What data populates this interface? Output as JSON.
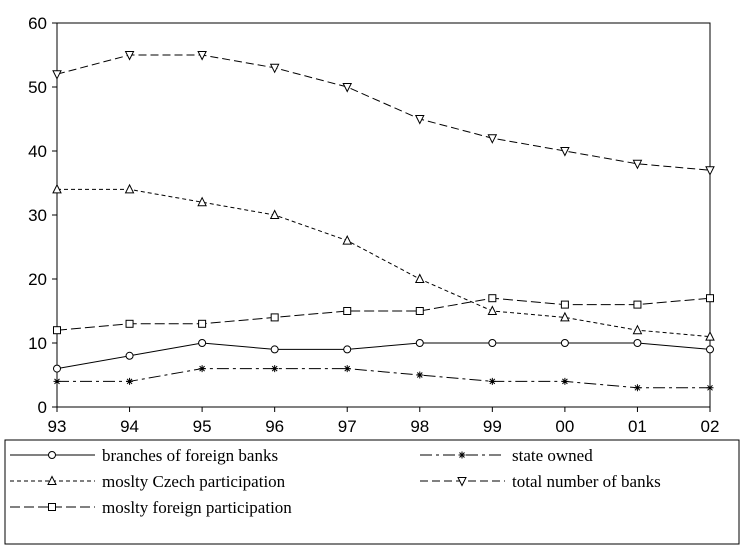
{
  "chart_data": {
    "type": "line",
    "categories": [
      "93",
      "94",
      "95",
      "96",
      "97",
      "98",
      "99",
      "00",
      "01",
      "02"
    ],
    "ylim": [
      0,
      60
    ],
    "yticks": [
      0,
      10,
      20,
      30,
      40,
      50,
      60
    ],
    "series": [
      {
        "name": "branches of foreign banks",
        "color": "#000000",
        "marker": "circle",
        "dash": "none",
        "values": [
          6,
          8,
          10,
          9,
          9,
          10,
          10,
          10,
          10,
          9
        ]
      },
      {
        "name": "state owned",
        "color": "#000000",
        "marker": "star",
        "dash": "12,4,3,4",
        "values": [
          4,
          4,
          6,
          6,
          6,
          5,
          4,
          4,
          3,
          3
        ]
      },
      {
        "name": "moslty Czech participation",
        "color": "#000000",
        "marker": "triangle-up",
        "dash": "4,3",
        "values": [
          34,
          34,
          32,
          30,
          26,
          20,
          15,
          14,
          12,
          11
        ]
      },
      {
        "name": "total number of banks",
        "color": "#000000",
        "marker": "triangle-down",
        "dash": "8,4",
        "values": [
          52,
          55,
          55,
          53,
          50,
          45,
          42,
          40,
          38,
          37
        ]
      },
      {
        "name": "moslty foreign participation",
        "color": "#000000",
        "marker": "square",
        "dash": "10,4",
        "values": [
          12,
          13,
          13,
          14,
          15,
          15,
          17,
          16,
          16,
          17
        ]
      }
    ]
  }
}
